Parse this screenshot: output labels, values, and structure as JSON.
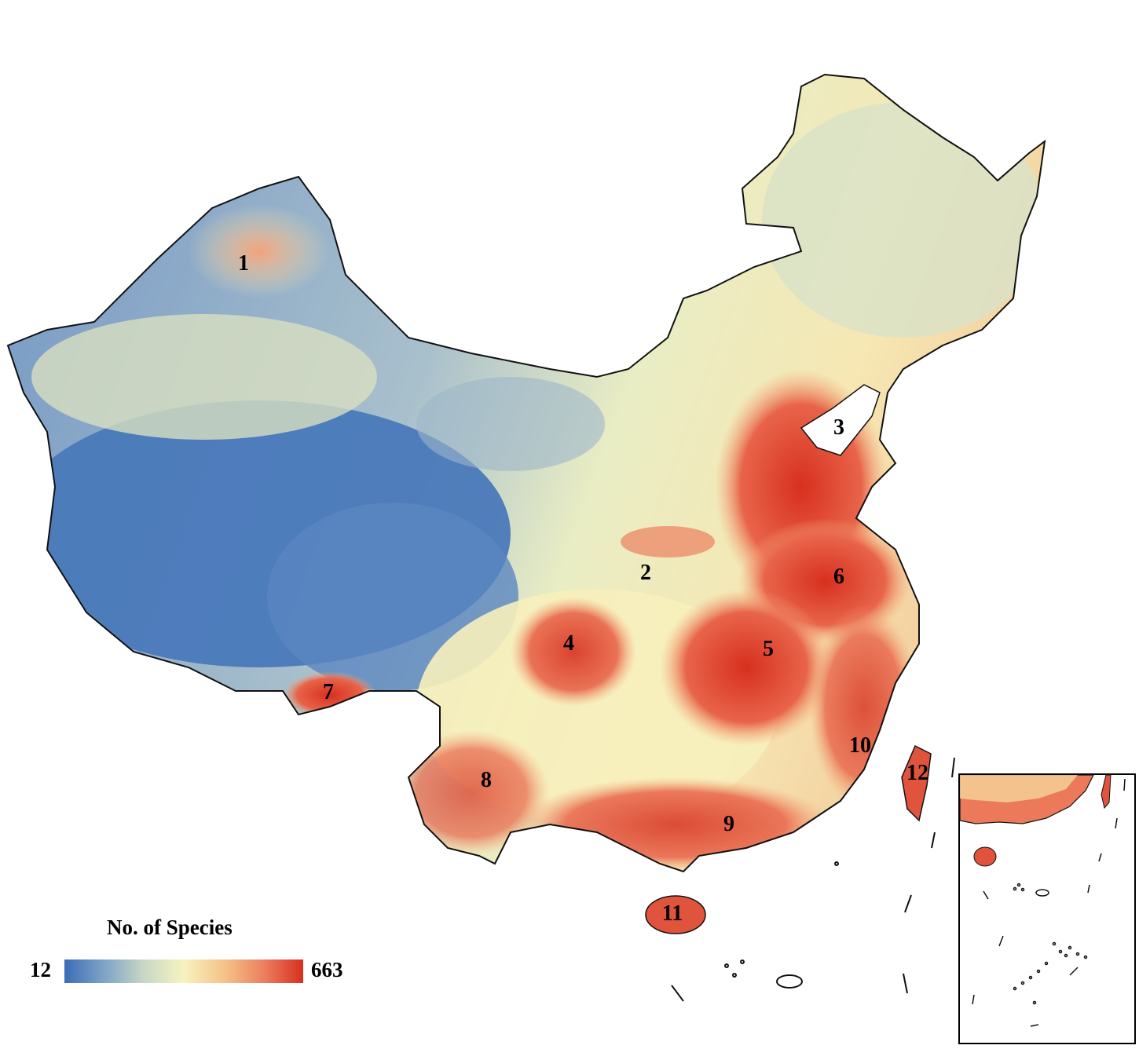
{
  "legend": {
    "title": "No. of Species",
    "min": "12",
    "max": "663",
    "colors": [
      "#3b6db5",
      "#7fa3c8",
      "#c8d8c4",
      "#f7f3c0",
      "#f6c48a",
      "#ec8060",
      "#d7301f"
    ]
  },
  "regions": [
    {
      "id": "1",
      "label": "1"
    },
    {
      "id": "2",
      "label": "2"
    },
    {
      "id": "3",
      "label": "3"
    },
    {
      "id": "4",
      "label": "4"
    },
    {
      "id": "5",
      "label": "5"
    },
    {
      "id": "6",
      "label": "6"
    },
    {
      "id": "7",
      "label": "7"
    },
    {
      "id": "8",
      "label": "8"
    },
    {
      "id": "9",
      "label": "9"
    },
    {
      "id": "10",
      "label": "10"
    },
    {
      "id": "11",
      "label": "11"
    },
    {
      "id": "12",
      "label": "12"
    }
  ],
  "colors": {
    "low": "#3b6db5",
    "mid": "#f7f3c0",
    "high": "#d7301f",
    "border": "#111111"
  }
}
